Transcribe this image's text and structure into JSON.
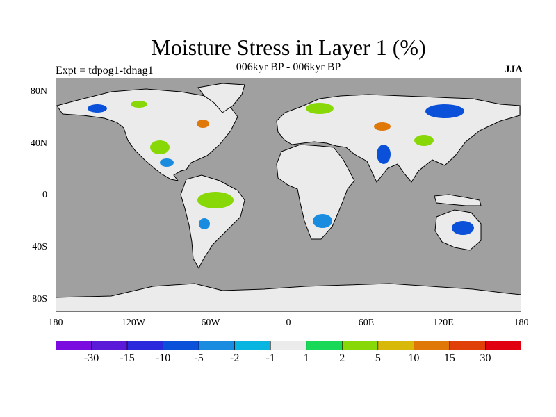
{
  "title": "Moisture Stress in Layer 1 (%)",
  "subtitle": "006kyr BP - 006kyr BP",
  "experiment_label": "Expt = tdpog1-tdnag1",
  "season": "JJA",
  "map": {
    "projection": "cylindrical equidistant",
    "ocean_color": "#a0a0a0",
    "land_neutral_color": "#ebebeb",
    "coastline_color": "#000000",
    "lat_ticks": [
      "80N",
      "40N",
      "0",
      "40S",
      "80S"
    ],
    "lon_ticks": [
      "180",
      "120W",
      "60W",
      "0",
      "60E",
      "120E",
      "180"
    ]
  },
  "colorbar": {
    "colors": [
      "#7a0ce0",
      "#5a1ad8",
      "#2a2adc",
      "#0a50d8",
      "#1a8ce0",
      "#08b4e0",
      "#ebebeb",
      "#18d858",
      "#88d808",
      "#d8b808",
      "#e07808",
      "#e04008",
      "#e00010"
    ],
    "labels": [
      "-30",
      "-15",
      "-10",
      "-5",
      "-2",
      "-1",
      "1",
      "2",
      "5",
      "10",
      "15",
      "30"
    ]
  }
}
